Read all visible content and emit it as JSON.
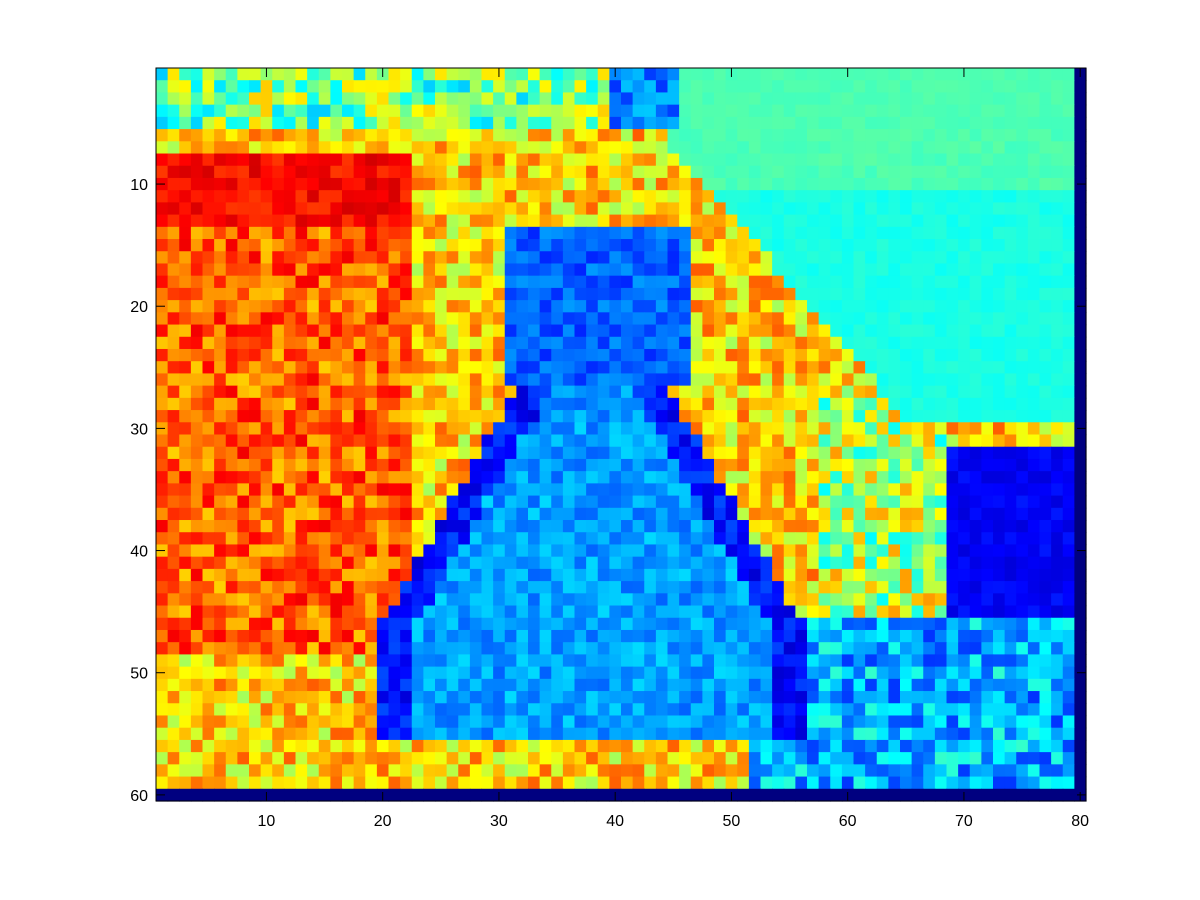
{
  "chart_data": {
    "type": "heatmap",
    "title": "",
    "xlabel": "",
    "ylabel": "",
    "colormap": "jet",
    "columns": 80,
    "rows": 60,
    "xlim": [
      0.5,
      80.5
    ],
    "ylim": [
      0.5,
      60.5
    ],
    "y_direction": "reverse",
    "x_ticks": [
      10,
      20,
      30,
      40,
      50,
      60,
      70,
      80
    ],
    "y_ticks": [
      10,
      20,
      30,
      40,
      50,
      60
    ],
    "value_range": [
      0,
      1
    ],
    "description_of_content": "",
    "grid": false,
    "scene_values": {
      "background_top_right": 0.45,
      "warm_region_left": 0.78,
      "hot_peak_left": 0.92,
      "cat_body": 0.28,
      "cat_shadow": 0.14,
      "dark_block_right": 0.12,
      "border_bottom_row": 0.0,
      "border_right_column": 0.0
    }
  }
}
